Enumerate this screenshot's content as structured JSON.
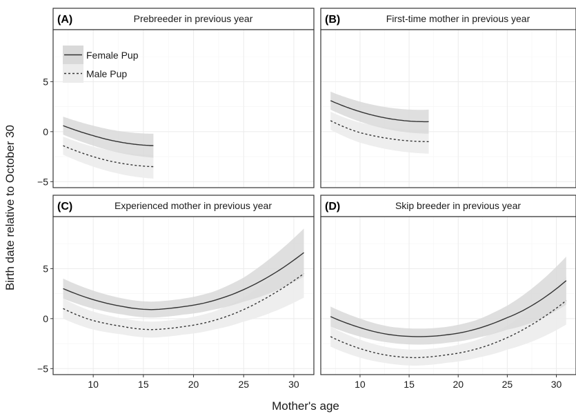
{
  "chart_data": {
    "type": "line",
    "xlabel": "Mother's age",
    "ylabel": "Birth date relative to October 30",
    "xlim": [
      6,
      32
    ],
    "ylim": [
      -5.6,
      10.2
    ],
    "xticks": [
      10,
      15,
      20,
      25,
      30
    ],
    "yticks": [
      -5,
      0,
      5
    ],
    "grid": true,
    "legend": {
      "placement": "top-left of panel A",
      "entries": [
        {
          "name": "Female Pup",
          "style": "solid"
        },
        {
          "name": "Male Pup",
          "style": "dashed"
        }
      ]
    },
    "panels": [
      {
        "letter": "(A)",
        "title": "Prebreeder in previous year",
        "x_range": [
          7,
          16
        ],
        "series": [
          {
            "name": "Female Pup",
            "x": [
              7,
              10,
              13,
              16
            ],
            "y": [
              0.6,
              -0.4,
              -1.1,
              -1.4
            ],
            "ci_halfwidth": [
              0.9,
              1.0,
              1.1,
              1.2
            ]
          },
          {
            "name": "Male Pup",
            "x": [
              7,
              10,
              13,
              16
            ],
            "y": [
              -1.4,
              -2.5,
              -3.2,
              -3.5
            ],
            "ci_halfwidth": [
              0.9,
              1.0,
              1.1,
              1.2
            ]
          }
        ]
      },
      {
        "letter": "(B)",
        "title": "First-time mother in previous year",
        "x_range": [
          7,
          17
        ],
        "series": [
          {
            "name": "Female Pup",
            "x": [
              7,
              10,
              13,
              17
            ],
            "y": [
              3.1,
              2.0,
              1.3,
              1.0
            ],
            "ci_halfwidth": [
              0.9,
              1.0,
              1.1,
              1.2
            ]
          },
          {
            "name": "Male Pup",
            "x": [
              7,
              10,
              13,
              17
            ],
            "y": [
              1.1,
              -0.1,
              -0.7,
              -1.0
            ],
            "ci_halfwidth": [
              0.9,
              1.0,
              1.1,
              1.2
            ]
          }
        ]
      },
      {
        "letter": "(C)",
        "title": "Experienced mother in previous year",
        "x_range": [
          7,
          31
        ],
        "series": [
          {
            "name": "Female Pup",
            "x": [
              7,
              10,
              13,
              16,
              19,
              22,
              25,
              28,
              31
            ],
            "y": [
              3.0,
              1.9,
              1.2,
              0.9,
              1.2,
              1.8,
              2.9,
              4.5,
              6.6
            ],
            "ci_halfwidth": [
              1.0,
              0.9,
              0.8,
              0.8,
              0.8,
              0.9,
              1.2,
              1.8,
              2.4
            ]
          },
          {
            "name": "Male Pup",
            "x": [
              7,
              10,
              13,
              16,
              19,
              22,
              25,
              28,
              31
            ],
            "y": [
              1.0,
              -0.2,
              -0.8,
              -1.1,
              -0.8,
              -0.2,
              0.9,
              2.5,
              4.5
            ],
            "ci_halfwidth": [
              1.0,
              0.9,
              0.8,
              0.8,
              0.8,
              0.9,
              1.2,
              1.8,
              2.4
            ]
          }
        ]
      },
      {
        "letter": "(D)",
        "title": "Skip breeder in previous year",
        "x_range": [
          7,
          31
        ],
        "series": [
          {
            "name": "Female Pup",
            "x": [
              7,
              10,
              13,
              16,
              19,
              22,
              25,
              28,
              31
            ],
            "y": [
              0.2,
              -0.9,
              -1.6,
              -1.8,
              -1.6,
              -1.0,
              0.1,
              1.6,
              3.8
            ],
            "ci_halfwidth": [
              1.0,
              0.9,
              0.8,
              0.8,
              0.8,
              0.9,
              1.2,
              1.8,
              2.4
            ]
          },
          {
            "name": "Male Pup",
            "x": [
              7,
              10,
              13,
              16,
              19,
              22,
              25,
              28,
              31
            ],
            "y": [
              -1.8,
              -3.0,
              -3.7,
              -3.9,
              -3.6,
              -3.0,
              -1.9,
              -0.3,
              1.8
            ],
            "ci_halfwidth": [
              1.0,
              0.9,
              0.8,
              0.8,
              0.8,
              0.9,
              1.2,
              1.8,
              2.4
            ]
          }
        ]
      }
    ],
    "colors": {
      "female_ribbon": "#d9d9d9",
      "male_ribbon": "#ececec",
      "line": "#333333",
      "strip_border": "#333333",
      "grid_major": "#ebebeb",
      "grid_minor": "#f5f5f5"
    }
  }
}
